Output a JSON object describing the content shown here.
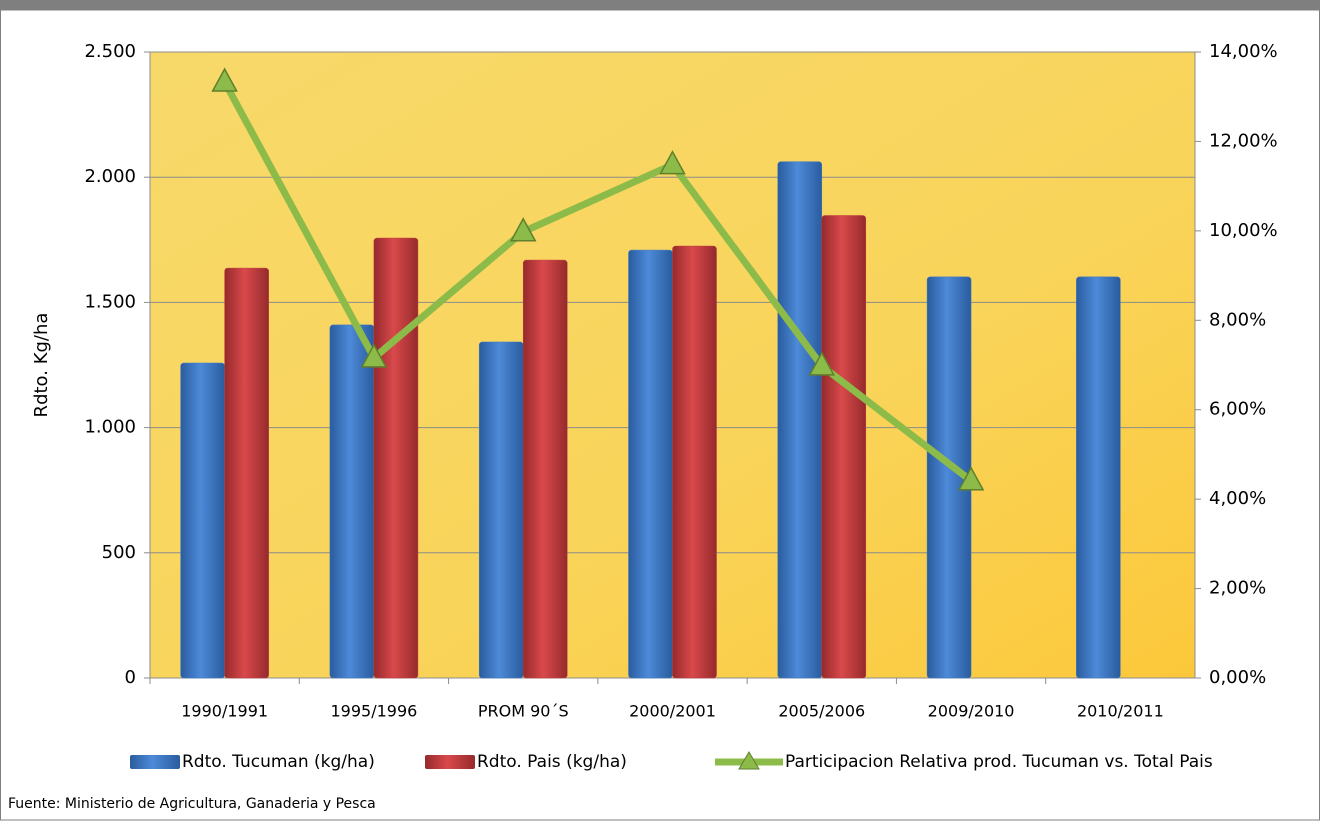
{
  "chart_data": {
    "type": "bar-line",
    "y_label": "Rdto. Kg/ha",
    "source": "Fuente: Ministerio de Agricultura, Ganaderia y Pesca",
    "categories": [
      "1990/1991",
      "1995/1996",
      "PROM 90´S",
      "2000/2001",
      "2005/2006",
      "2009/2010",
      "2010/2011"
    ],
    "series": [
      {
        "name": "Rdto. Tucuman (kg/ha)",
        "color": "#3b78c9",
        "type": "bar",
        "values": [
          1258,
          1410,
          1342,
          1709,
          2062,
          1602,
          1602
        ]
      },
      {
        "name": "Rdto. Pais (kg/ha)",
        "color": "#c0393b",
        "type": "bar",
        "values": [
          1637,
          1757,
          1669,
          1725,
          1847,
          null,
          null
        ]
      },
      {
        "name": "Participacion Relativa prod. Tucuman vs. Total Pais",
        "color": "#8dbb4a",
        "type": "line",
        "axis": "y2",
        "values": [
          13.33,
          7.16,
          9.98,
          11.48,
          6.98,
          4.41,
          null
        ]
      }
    ],
    "ylim": [
      0,
      2500
    ],
    "yticks": [
      0,
      500,
      {
        "value": 1000,
        "label": "1.000"
      },
      {
        "value": 1500,
        "label": "1.500"
      },
      {
        "value": 2000,
        "label": "2.000"
      },
      {
        "value": 2500,
        "label": "2.500"
      }
    ],
    "y2lim": [
      0,
      14
    ],
    "y2ticks": [
      {
        "value": 0,
        "label": "0,00%"
      },
      {
        "value": 2,
        "label": "2,00%"
      },
      {
        "value": 4,
        "label": "4,00%"
      },
      {
        "value": 6,
        "label": "6,00%"
      },
      {
        "value": 8,
        "label": "8,00%"
      },
      {
        "value": 10,
        "label": "10,00%"
      },
      {
        "value": 12,
        "label": "12,00%"
      },
      {
        "value": 14,
        "label": "14,00%"
      }
    ],
    "grid": true
  }
}
